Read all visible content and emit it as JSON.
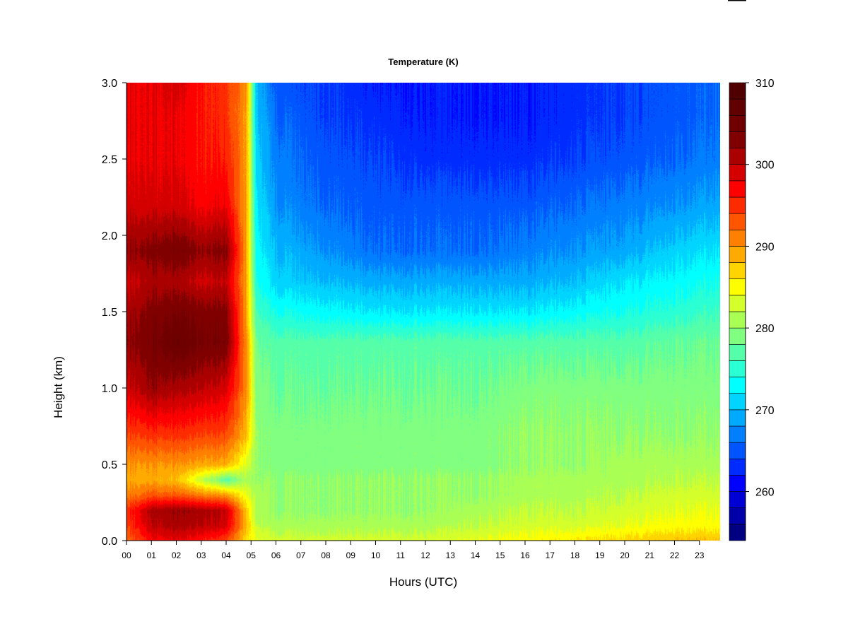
{
  "chart_data": {
    "type": "heatmap",
    "title": "Temperature (K)",
    "xlabel": "Hours (UTC)",
    "ylabel": "Height (km)",
    "xlim": [
      0,
      23.8
    ],
    "ylim": [
      0,
      3.0
    ],
    "x_ticks": [
      "00",
      "01",
      "02",
      "03",
      "04",
      "05",
      "06",
      "07",
      "08",
      "09",
      "10",
      "11",
      "12",
      "13",
      "14",
      "15",
      "16",
      "17",
      "18",
      "19",
      "20",
      "21",
      "22",
      "23"
    ],
    "y_ticks": [
      "0.0",
      "0.5",
      "1.0",
      "1.5",
      "2.0",
      "2.5",
      "3.0"
    ],
    "colorbar": {
      "min": 254,
      "max": 310,
      "step": 2,
      "tick_labels": [
        "260",
        "270",
        "280",
        "290",
        "300",
        "310"
      ],
      "colors": [
        "#000080",
        "#0000aa",
        "#0000d4",
        "#0000ff",
        "#002bff",
        "#0055ff",
        "#0080ff",
        "#00aaff",
        "#00d4ff",
        "#00ffff",
        "#2bffd4",
        "#55ffaa",
        "#80ff80",
        "#aaff55",
        "#d4ff2b",
        "#ffff00",
        "#ffd400",
        "#ffaa00",
        "#ff8000",
        "#ff5500",
        "#ff2b00",
        "#ff0000",
        "#d40000",
        "#aa0000",
        "#800000",
        "#700000",
        "#600000",
        "#500000"
      ]
    },
    "grid": false,
    "legend": "right",
    "description_values": {
      "x_hours": [
        0,
        1,
        2,
        3,
        4,
        4.8,
        5.2,
        6,
        8,
        10,
        12,
        14,
        16,
        18,
        20,
        22,
        23.8
      ],
      "y_km": [
        0,
        0.1,
        0.2,
        0.3,
        0.4,
        0.5,
        0.7,
        1.0,
        1.3,
        1.5,
        1.7,
        1.9,
        2.2,
        2.5,
        2.8,
        3.0
      ],
      "values_K": [
        [
          292,
          297,
          298,
          296,
          294,
          286,
          284,
          283,
          283,
          283,
          283,
          284,
          285,
          286,
          287,
          288,
          288
        ],
        [
          294,
          300,
          301,
          300,
          299,
          288,
          282,
          281,
          281,
          281,
          281,
          282,
          283,
          283,
          284,
          285,
          285
        ],
        [
          295,
          301,
          302,
          301,
          300,
          287,
          281,
          280,
          280,
          280,
          280,
          281,
          282,
          282,
          283,
          284,
          284
        ],
        [
          291,
          293,
          293,
          291,
          290,
          284,
          281,
          280,
          280,
          280,
          280,
          280,
          281,
          281,
          282,
          283,
          283
        ],
        [
          289,
          289,
          288,
          282,
          277,
          281,
          280,
          280,
          280,
          280,
          280,
          280,
          281,
          281,
          281,
          282,
          282
        ],
        [
          290,
          290,
          290,
          289,
          289,
          283,
          280,
          279,
          279,
          279,
          279,
          279,
          280,
          280,
          281,
          281,
          281
        ],
        [
          294,
          295,
          295,
          294,
          294,
          288,
          280,
          279,
          279,
          279,
          279,
          279,
          280,
          280,
          280,
          280,
          280
        ],
        [
          299,
          302,
          301,
          300,
          299,
          290,
          279,
          278,
          278,
          278,
          278,
          278,
          279,
          279,
          279,
          279,
          279
        ],
        [
          302,
          304,
          306,
          304,
          304,
          290,
          278,
          277,
          277,
          277,
          277,
          277,
          277,
          277,
          277,
          278,
          278
        ],
        [
          301,
          303,
          304,
          303,
          303,
          289,
          276,
          274,
          273,
          272,
          272,
          272,
          272,
          273,
          274,
          275,
          276
        ],
        [
          299,
          301,
          301,
          299,
          300,
          289,
          274,
          271,
          270,
          269,
          269,
          269,
          269,
          270,
          272,
          273,
          274
        ],
        [
          302,
          303,
          304,
          302,
          303,
          289,
          273,
          270,
          268,
          266,
          266,
          266,
          267,
          268,
          269,
          271,
          272
        ],
        [
          299,
          299,
          299,
          297,
          298,
          289,
          272,
          268,
          266,
          265,
          265,
          265,
          265,
          266,
          267,
          268,
          269
        ],
        [
          298,
          298,
          298,
          296,
          296,
          289,
          271,
          267,
          265,
          264,
          263,
          263,
          263,
          264,
          265,
          266,
          267
        ],
        [
          298,
          298,
          298,
          296,
          295,
          289,
          270,
          266,
          264,
          263,
          262,
          262,
          262,
          263,
          264,
          265,
          266
        ],
        [
          298,
          298,
          299,
          296,
          295,
          290,
          270,
          265,
          264,
          262,
          262,
          262,
          262,
          263,
          264,
          265,
          266
        ]
      ]
    }
  }
}
